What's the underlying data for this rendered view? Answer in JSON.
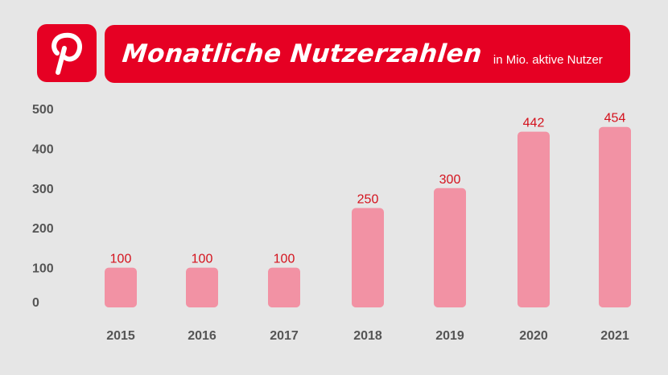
{
  "header": {
    "logo_icon": "pinterest-logo-icon",
    "title": "Monatliche Nutzerzahlen",
    "subtitle": "in Mio. aktive Nutzer"
  },
  "colors": {
    "accent": "#e60023",
    "bar": "#f292a4",
    "data_label": "#d4111c",
    "axis_text": "#555555",
    "background": "#e6e6e6"
  },
  "chart_data": {
    "type": "bar",
    "title": "Monatliche Nutzerzahlen",
    "subtitle": "in Mio. aktive Nutzer",
    "categories": [
      "2015",
      "2016",
      "2017",
      "2018",
      "2019",
      "2020",
      "2021"
    ],
    "values": [
      100,
      100,
      100,
      250,
      300,
      442,
      454
    ],
    "data_labels": [
      "100",
      "100",
      "100",
      "250",
      "300",
      "442",
      "454"
    ],
    "yticks": [
      "0",
      "100",
      "200",
      "300",
      "400",
      "500"
    ],
    "ylim": [
      0,
      500
    ],
    "xlabel": "",
    "ylabel": "",
    "grid": false,
    "legend": "none"
  }
}
